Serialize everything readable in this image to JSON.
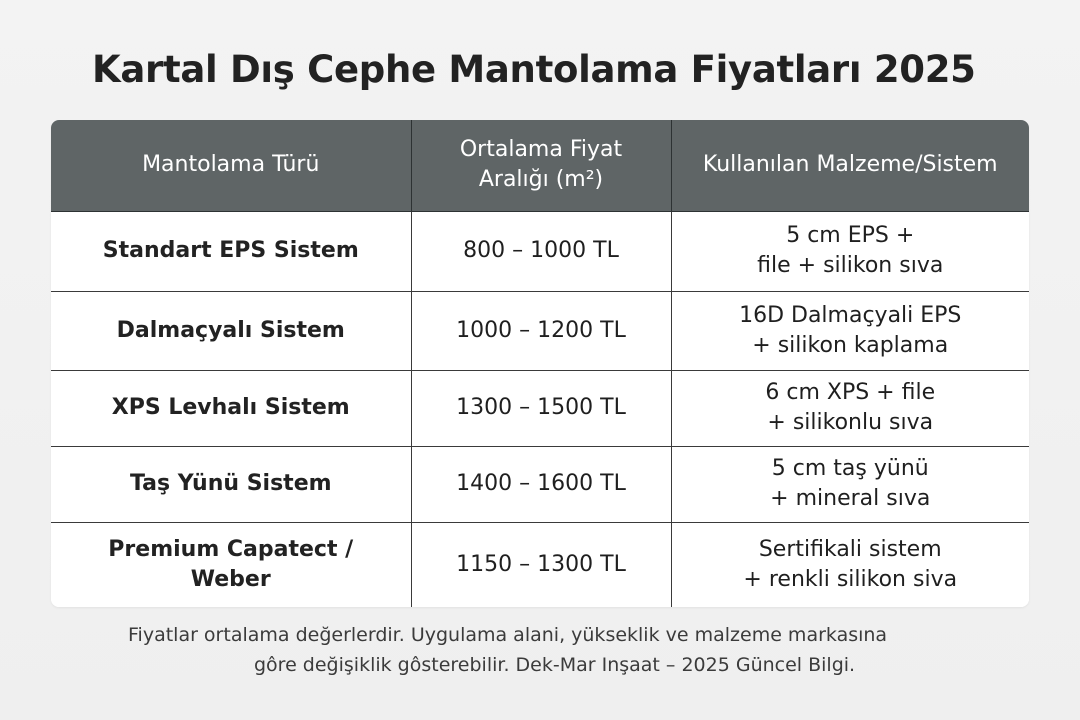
{
  "title": "Kartal Dış Cephe Mantolama Fiyatları 2025",
  "table": {
    "headers": [
      [
        "Mantolama Türü"
      ],
      [
        "Ortalama Fiyat",
        "Aralığı (m²)"
      ],
      [
        "Kullanılan Malzeme/Sistem"
      ]
    ],
    "rows": [
      {
        "type": [
          "Standart EPS Sistem"
        ],
        "price": "800 – 1000 TL",
        "material": [
          "5 cm EPS +",
          "file + silikon sıva"
        ]
      },
      {
        "type": [
          "Dalmaçyalı Sistem"
        ],
        "price": "1000 – 1200 TL",
        "material": [
          "16D Dalmaçyali EPS",
          "+ silikon kaplama"
        ]
      },
      {
        "type": [
          "XPS Levhalı Sistem"
        ],
        "price": "1300 – 1500 TL",
        "material": [
          "6 cm XPS + file",
          "+ silikonlu sıva"
        ]
      },
      {
        "type": [
          "Taş Yünü Sistem"
        ],
        "price": "1400 – 1600 TL",
        "material": [
          "5 cm taş yünü",
          "+ mineral sıva"
        ]
      },
      {
        "type": [
          "Premium Capatect /",
          "Weber"
        ],
        "price": "1150 – 1300 TL",
        "material": [
          "Sertifikali sistem",
          "+ renkli silikon siva"
        ]
      }
    ]
  },
  "footnote": [
    "Fiyatlar ortalama değerlerdir. Uygulama alani, yükseklik ve malzeme markasına",
    "gôre değişiklik gôsterebilir. Dek-Mar Inşaat – 2025 Güncel Bilgi."
  ]
}
